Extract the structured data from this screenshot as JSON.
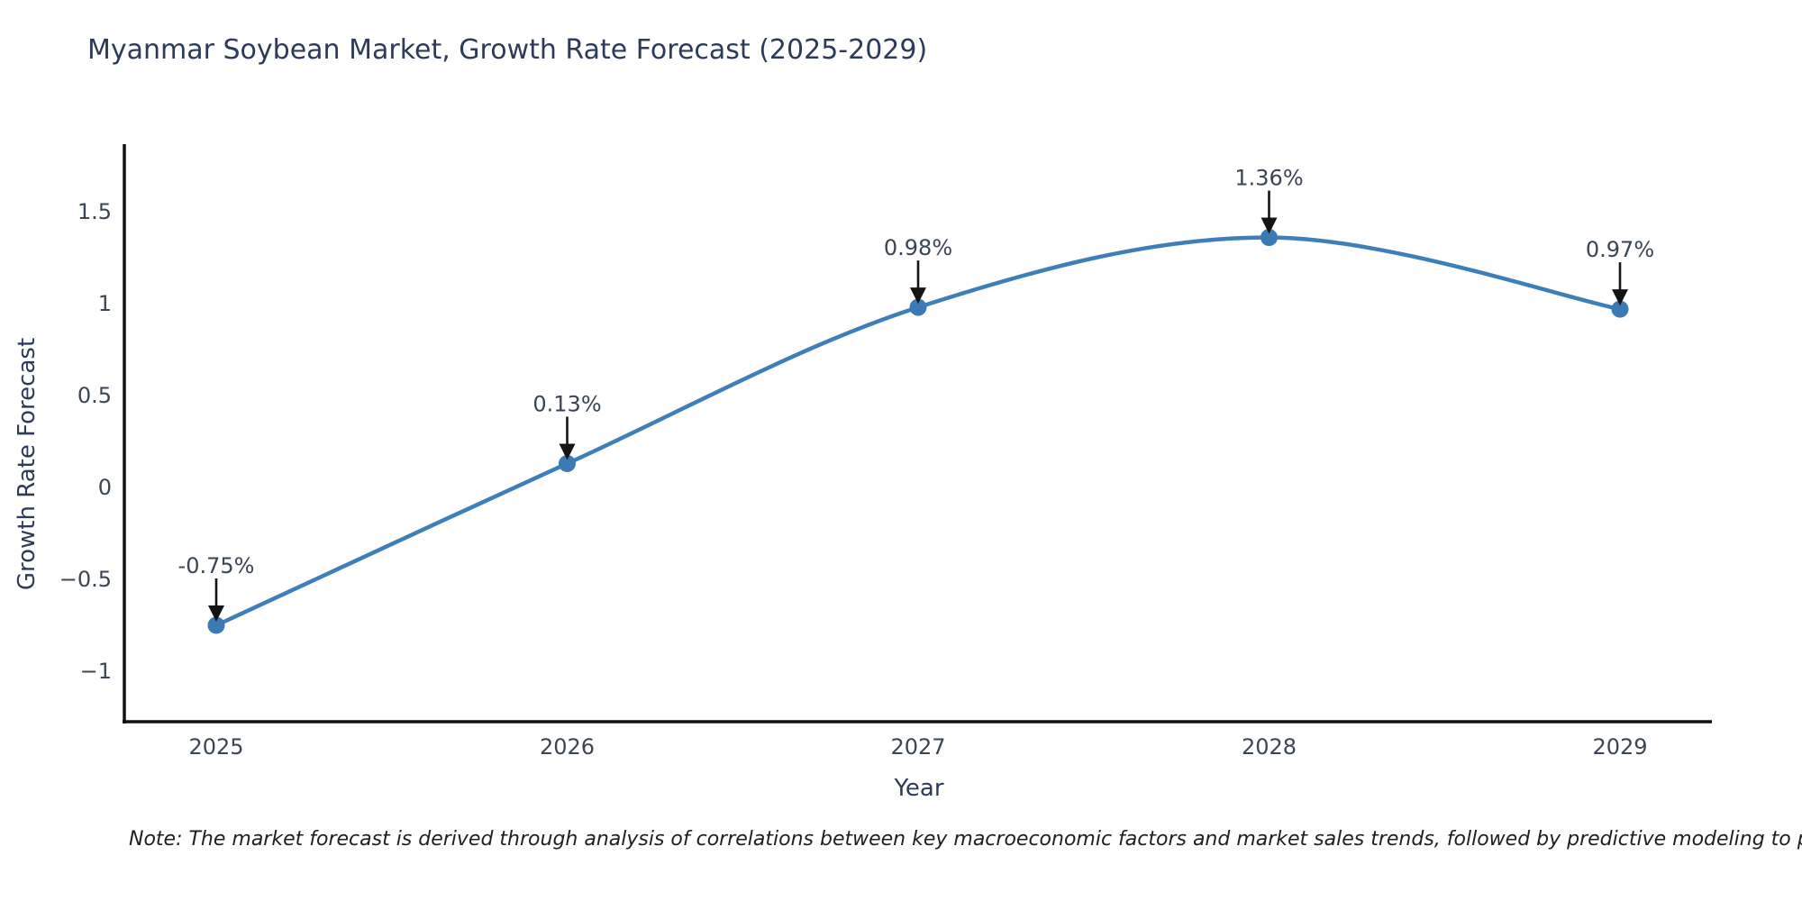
{
  "figure": {
    "background": "#ffffff"
  },
  "footnote": {
    "text": "Note: The market forecast is derived through analysis of correlations between key macroeconomic factors and market sales trends, followed by predictive modeling to project future sa"
  },
  "chart_data": {
    "type": "line",
    "title": "Myanmar Soybean Market, Growth Rate Forecast (2025-2029)",
    "xlabel": "Year",
    "ylabel": "Growth Rate Forecast",
    "x": [
      2025,
      2026,
      2027,
      2028,
      2029
    ],
    "series": [
      {
        "name": "Growth Rate Forecast",
        "values": [
          -0.75,
          0.13,
          0.98,
          1.36,
          0.97
        ],
        "point_labels": [
          "-0.75%",
          "0.13%",
          "0.98%",
          "1.36%",
          "0.97%"
        ]
      }
    ],
    "xtick_labels": [
      "2025",
      "2026",
      "2027",
      "2028",
      "2029"
    ],
    "ytick_values": [
      1.5,
      1.0,
      0.5,
      0.0,
      -0.5,
      -1.0
    ],
    "ytick_labels": [
      "1.5",
      "1",
      "0.5",
      "0",
      "−0.5",
      "−1"
    ],
    "xlim": [
      2024.73,
      2029.26
    ],
    "ylim": [
      -1.28,
      1.86
    ],
    "grid": false,
    "legend": false,
    "curve": "smooth",
    "annotations_have_arrows": true,
    "colors": {
      "line": "#3f7fb9",
      "marker": "#3b7ab5",
      "annotation_text": "#3a4554",
      "annotation_arrow": "#141414",
      "axis": "#111111",
      "tick_text": "#3b4654",
      "title_text": "#2d3b59",
      "note_text": "#1f1f1f"
    }
  }
}
